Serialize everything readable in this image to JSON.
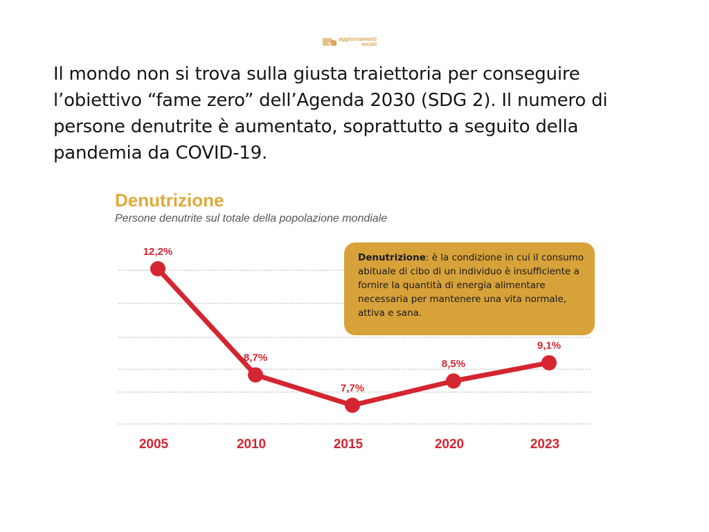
{
  "logo": {
    "line1": "aggiornamenti",
    "line2": "sociali"
  },
  "headline": "Il mondo non si trova sulla giusta traiettoria per conseguire l’obiettivo “fame zero” dell’Agenda 2030 (SDG 2). Il numero di persone denutrite è aumentato, soprattutto a seguito della pandemia da COVID-19.",
  "callout": {
    "term": "Denutrizione",
    "definition": ": è la condizione in cui il consumo abituale di cibo di un individuo è insufficiente a fornire la quantità di energia alimentare necessaria per mantenere una vita normale, attiva e sana."
  },
  "colors": {
    "line": "#d42530",
    "title": "#e0a93c",
    "callout_bg": "#d8a23a",
    "grid": "#cfcfcf"
  },
  "chart_data": {
    "type": "line",
    "title": "Denutrizione",
    "subtitle": "Persone denutrite sul totale della popolazione mondiale",
    "categories": [
      "2005",
      "2010",
      "2015",
      "2020",
      "2023"
    ],
    "values": [
      12.2,
      8.7,
      7.7,
      8.5,
      9.1
    ],
    "data_labels": [
      "12,2%",
      "8,7%",
      "7,7%",
      "8,5%",
      "9,1%"
    ],
    "ylim": [
      6.0,
      12.5
    ],
    "grid": true,
    "y_axis_labels": false
  }
}
